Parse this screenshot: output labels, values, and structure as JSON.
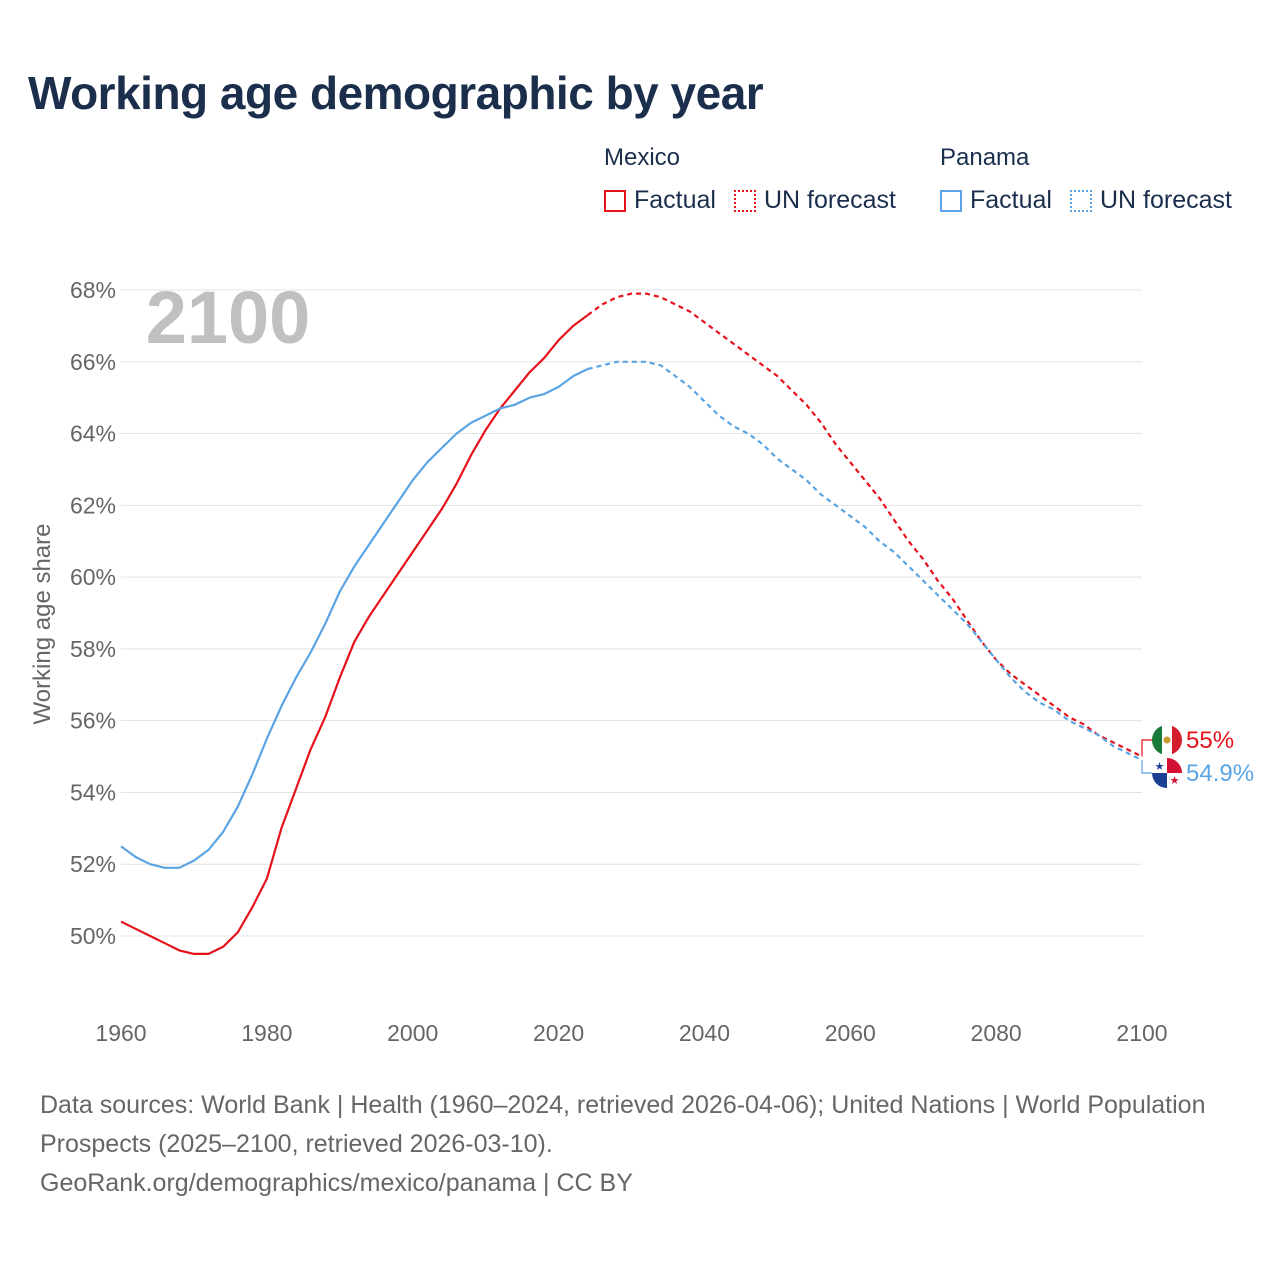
{
  "title": "Working age demographic by year",
  "legend": {
    "groups": [
      {
        "name": "Mexico",
        "color": "#e5121b",
        "factual_label": "Factual",
        "forecast_label": "UN forecast"
      },
      {
        "name": "Panama",
        "color": "#5aa4e4",
        "factual_label": "Factual",
        "forecast_label": "UN forecast"
      }
    ]
  },
  "year_watermark": "2100",
  "end_labels": {
    "mexico": "55%",
    "panama": "54.9%"
  },
  "footer": {
    "sources": "Data sources: World Bank | Health (1960–2024, retrieved 2026-04-06); United Nations | World Population Prospects (2025–2100, retrieved 2026-03-10).",
    "attribution": "GeoRank.org/demographics/mexico/panama | CC BY"
  },
  "chart_data": {
    "type": "line",
    "title": "Working age demographic by year",
    "xlabel": "",
    "ylabel": "Working age share",
    "xlim": [
      1960,
      2100
    ],
    "ylim": [
      48,
      68
    ],
    "x_ticks": [
      1960,
      1980,
      2000,
      2020,
      2040,
      2060,
      2080,
      2100
    ],
    "y_ticks": [
      50,
      52,
      54,
      56,
      58,
      60,
      62,
      64,
      66,
      68
    ],
    "y_tick_labels": [
      "50%",
      "52%",
      "54%",
      "56%",
      "58%",
      "60%",
      "62%",
      "64%",
      "66%",
      "68%"
    ],
    "grid": true,
    "forecast_start": 2024,
    "series": [
      {
        "name": "Mexico",
        "color": "#e5121b",
        "points": [
          [
            1960,
            50.4
          ],
          [
            1962,
            50.2
          ],
          [
            1964,
            50.0
          ],
          [
            1966,
            49.8
          ],
          [
            1968,
            49.6
          ],
          [
            1970,
            49.5
          ],
          [
            1972,
            49.5
          ],
          [
            1974,
            49.7
          ],
          [
            1976,
            50.1
          ],
          [
            1978,
            50.8
          ],
          [
            1980,
            51.6
          ],
          [
            1982,
            53.0
          ],
          [
            1984,
            54.1
          ],
          [
            1986,
            55.2
          ],
          [
            1988,
            56.1
          ],
          [
            1990,
            57.2
          ],
          [
            1992,
            58.2
          ],
          [
            1994,
            58.9
          ],
          [
            1996,
            59.5
          ],
          [
            1998,
            60.1
          ],
          [
            2000,
            60.7
          ],
          [
            2002,
            61.3
          ],
          [
            2004,
            61.9
          ],
          [
            2006,
            62.6
          ],
          [
            2008,
            63.4
          ],
          [
            2010,
            64.1
          ],
          [
            2012,
            64.7
          ],
          [
            2014,
            65.2
          ],
          [
            2016,
            65.7
          ],
          [
            2018,
            66.1
          ],
          [
            2020,
            66.6
          ],
          [
            2022,
            67.0
          ],
          [
            2024,
            67.3
          ],
          [
            2026,
            67.6
          ],
          [
            2028,
            67.8
          ],
          [
            2030,
            67.9
          ],
          [
            2032,
            67.9
          ],
          [
            2034,
            67.8
          ],
          [
            2036,
            67.6
          ],
          [
            2038,
            67.4
          ],
          [
            2040,
            67.1
          ],
          [
            2042,
            66.8
          ],
          [
            2044,
            66.5
          ],
          [
            2046,
            66.2
          ],
          [
            2048,
            65.9
          ],
          [
            2050,
            65.6
          ],
          [
            2052,
            65.2
          ],
          [
            2054,
            64.8
          ],
          [
            2056,
            64.3
          ],
          [
            2058,
            63.7
          ],
          [
            2060,
            63.2
          ],
          [
            2062,
            62.7
          ],
          [
            2064,
            62.2
          ],
          [
            2066,
            61.6
          ],
          [
            2068,
            61.0
          ],
          [
            2070,
            60.5
          ],
          [
            2072,
            59.9
          ],
          [
            2074,
            59.4
          ],
          [
            2076,
            58.8
          ],
          [
            2078,
            58.2
          ],
          [
            2080,
            57.7
          ],
          [
            2082,
            57.3
          ],
          [
            2084,
            57.0
          ],
          [
            2086,
            56.7
          ],
          [
            2088,
            56.4
          ],
          [
            2090,
            56.1
          ],
          [
            2092,
            55.9
          ],
          [
            2094,
            55.6
          ],
          [
            2096,
            55.4
          ],
          [
            2098,
            55.2
          ],
          [
            2100,
            55.0
          ]
        ]
      },
      {
        "name": "Panama",
        "color": "#5aa4e4",
        "points": [
          [
            1960,
            52.5
          ],
          [
            1962,
            52.2
          ],
          [
            1964,
            52.0
          ],
          [
            1966,
            51.9
          ],
          [
            1968,
            51.9
          ],
          [
            1970,
            52.1
          ],
          [
            1972,
            52.4
          ],
          [
            1974,
            52.9
          ],
          [
            1976,
            53.6
          ],
          [
            1978,
            54.5
          ],
          [
            1980,
            55.5
          ],
          [
            1982,
            56.4
          ],
          [
            1984,
            57.2
          ],
          [
            1986,
            57.9
          ],
          [
            1988,
            58.7
          ],
          [
            1990,
            59.6
          ],
          [
            1992,
            60.3
          ],
          [
            1994,
            60.9
          ],
          [
            1996,
            61.5
          ],
          [
            1998,
            62.1
          ],
          [
            2000,
            62.7
          ],
          [
            2002,
            63.2
          ],
          [
            2004,
            63.6
          ],
          [
            2006,
            64.0
          ],
          [
            2008,
            64.3
          ],
          [
            2010,
            64.5
          ],
          [
            2012,
            64.7
          ],
          [
            2014,
            64.8
          ],
          [
            2016,
            65.0
          ],
          [
            2018,
            65.1
          ],
          [
            2020,
            65.3
          ],
          [
            2022,
            65.6
          ],
          [
            2024,
            65.8
          ],
          [
            2026,
            65.9
          ],
          [
            2028,
            66.0
          ],
          [
            2030,
            66.0
          ],
          [
            2032,
            66.0
          ],
          [
            2034,
            65.9
          ],
          [
            2036,
            65.6
          ],
          [
            2038,
            65.3
          ],
          [
            2040,
            64.9
          ],
          [
            2042,
            64.5
          ],
          [
            2044,
            64.2
          ],
          [
            2046,
            64.0
          ],
          [
            2048,
            63.7
          ],
          [
            2050,
            63.3
          ],
          [
            2052,
            63.0
          ],
          [
            2054,
            62.7
          ],
          [
            2056,
            62.3
          ],
          [
            2058,
            62.0
          ],
          [
            2060,
            61.7
          ],
          [
            2062,
            61.4
          ],
          [
            2064,
            61.0
          ],
          [
            2066,
            60.7
          ],
          [
            2068,
            60.3
          ],
          [
            2070,
            59.9
          ],
          [
            2072,
            59.5
          ],
          [
            2074,
            59.1
          ],
          [
            2076,
            58.7
          ],
          [
            2078,
            58.2
          ],
          [
            2080,
            57.7
          ],
          [
            2082,
            57.2
          ],
          [
            2084,
            56.8
          ],
          [
            2086,
            56.5
          ],
          [
            2088,
            56.3
          ],
          [
            2090,
            56.0
          ],
          [
            2092,
            55.8
          ],
          [
            2094,
            55.6
          ],
          [
            2096,
            55.3
          ],
          [
            2098,
            55.1
          ],
          [
            2100,
            54.9
          ]
        ]
      }
    ]
  }
}
